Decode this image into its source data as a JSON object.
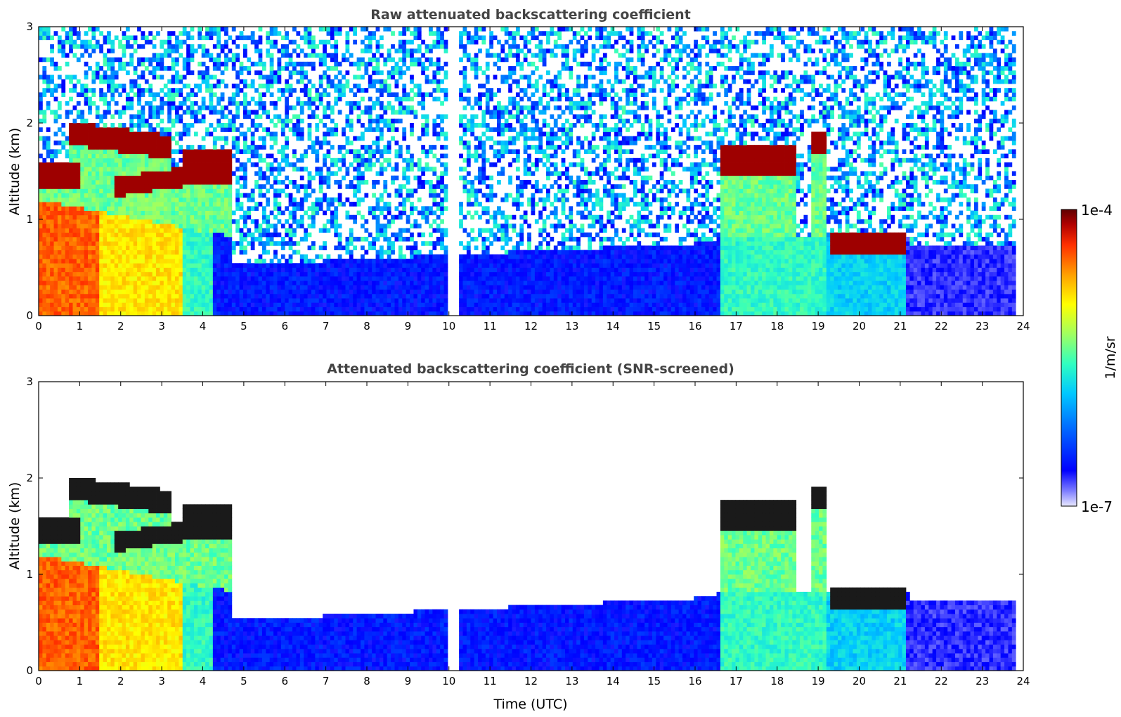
{
  "chart_data": [
    {
      "type": "heatmap",
      "title": "Raw attenuated backscattering coefficient",
      "xlabel": "",
      "ylabel": "Altitude (km)",
      "xlim": [
        0,
        24
      ],
      "ylim": [
        0,
        3
      ],
      "xticks": [
        "0",
        "1",
        "2",
        "3",
        "4",
        "5",
        "6",
        "7",
        "8",
        "9",
        "10",
        "11",
        "12",
        "13",
        "14",
        "15",
        "16",
        "17",
        "18",
        "19",
        "20",
        "21",
        "22",
        "23",
        "24"
      ],
      "yticks": [
        "0",
        "1",
        "2",
        "3"
      ],
      "screened": false,
      "features": [
        {
          "kind": "cloud",
          "t0": 0.0,
          "t1": 1.0,
          "alt": 1.45,
          "thickness": 0.15
        },
        {
          "kind": "cloud",
          "t0": 0.7,
          "t1": 3.2,
          "alt": 1.9,
          "alt_end": 1.75,
          "thickness": 0.12
        },
        {
          "kind": "cloud",
          "t0": 1.8,
          "t1": 3.6,
          "alt": 1.33,
          "alt_end": 1.45,
          "thickness": 0.1
        },
        {
          "kind": "cloud",
          "t0": 3.5,
          "t1": 4.7,
          "alt": 1.55,
          "thickness": 0.18
        },
        {
          "kind": "cloud",
          "t0": 16.6,
          "t1": 18.5,
          "alt": 1.6,
          "thickness": 0.15
        },
        {
          "kind": "cloud",
          "t0": 18.8,
          "t1": 19.2,
          "alt": 1.8,
          "thickness": 0.12
        },
        {
          "kind": "cloud",
          "t0": 19.3,
          "t1": 21.1,
          "alt": 0.75,
          "thickness": 0.12
        }
      ],
      "gaps": [
        [
          10.0,
          10.25
        ]
      ]
    },
    {
      "type": "heatmap",
      "title": "Attenuated backscattering coefficient (SNR-screened)",
      "xlabel": "Time (UTC)",
      "ylabel": "Altitude (km)",
      "xlim": [
        0,
        24
      ],
      "ylim": [
        0,
        3
      ],
      "xticks": [
        "0",
        "1",
        "2",
        "3",
        "4",
        "5",
        "6",
        "7",
        "8",
        "9",
        "10",
        "11",
        "12",
        "13",
        "14",
        "15",
        "16",
        "17",
        "18",
        "19",
        "20",
        "21",
        "22",
        "23",
        "24"
      ],
      "yticks": [
        "0",
        "1",
        "2",
        "3"
      ],
      "screened": true,
      "features": [
        {
          "kind": "cloud",
          "t0": 0.0,
          "t1": 1.0,
          "alt": 1.45,
          "thickness": 0.15
        },
        {
          "kind": "cloud",
          "t0": 0.7,
          "t1": 3.2,
          "alt": 1.9,
          "alt_end": 1.75,
          "thickness": 0.12
        },
        {
          "kind": "cloud",
          "t0": 1.8,
          "t1": 3.6,
          "alt": 1.33,
          "alt_end": 1.45,
          "thickness": 0.1
        },
        {
          "kind": "cloud",
          "t0": 3.5,
          "t1": 4.7,
          "alt": 1.55,
          "thickness": 0.18
        },
        {
          "kind": "cloud",
          "t0": 16.6,
          "t1": 18.5,
          "alt": 1.6,
          "thickness": 0.15
        },
        {
          "kind": "cloud",
          "t0": 18.8,
          "t1": 19.2,
          "alt": 1.8,
          "thickness": 0.12
        },
        {
          "kind": "cloud",
          "t0": 19.3,
          "t1": 21.1,
          "alt": 0.75,
          "thickness": 0.12
        }
      ],
      "gaps": [
        [
          10.0,
          10.25
        ]
      ]
    }
  ],
  "colorbar": {
    "label": "1/m/sr",
    "max_label": "1e-4",
    "min_label": "1e-7",
    "scale": "log",
    "range": [
      1e-07,
      0.0001
    ],
    "colormap": [
      "#e8e8ff",
      "#8080ff",
      "#0000ff",
      "#0060ff",
      "#00c8ff",
      "#30ffc0",
      "#a0ff60",
      "#ffff00",
      "#ffa000",
      "#ff3000",
      "#b00000",
      "#600000"
    ]
  }
}
